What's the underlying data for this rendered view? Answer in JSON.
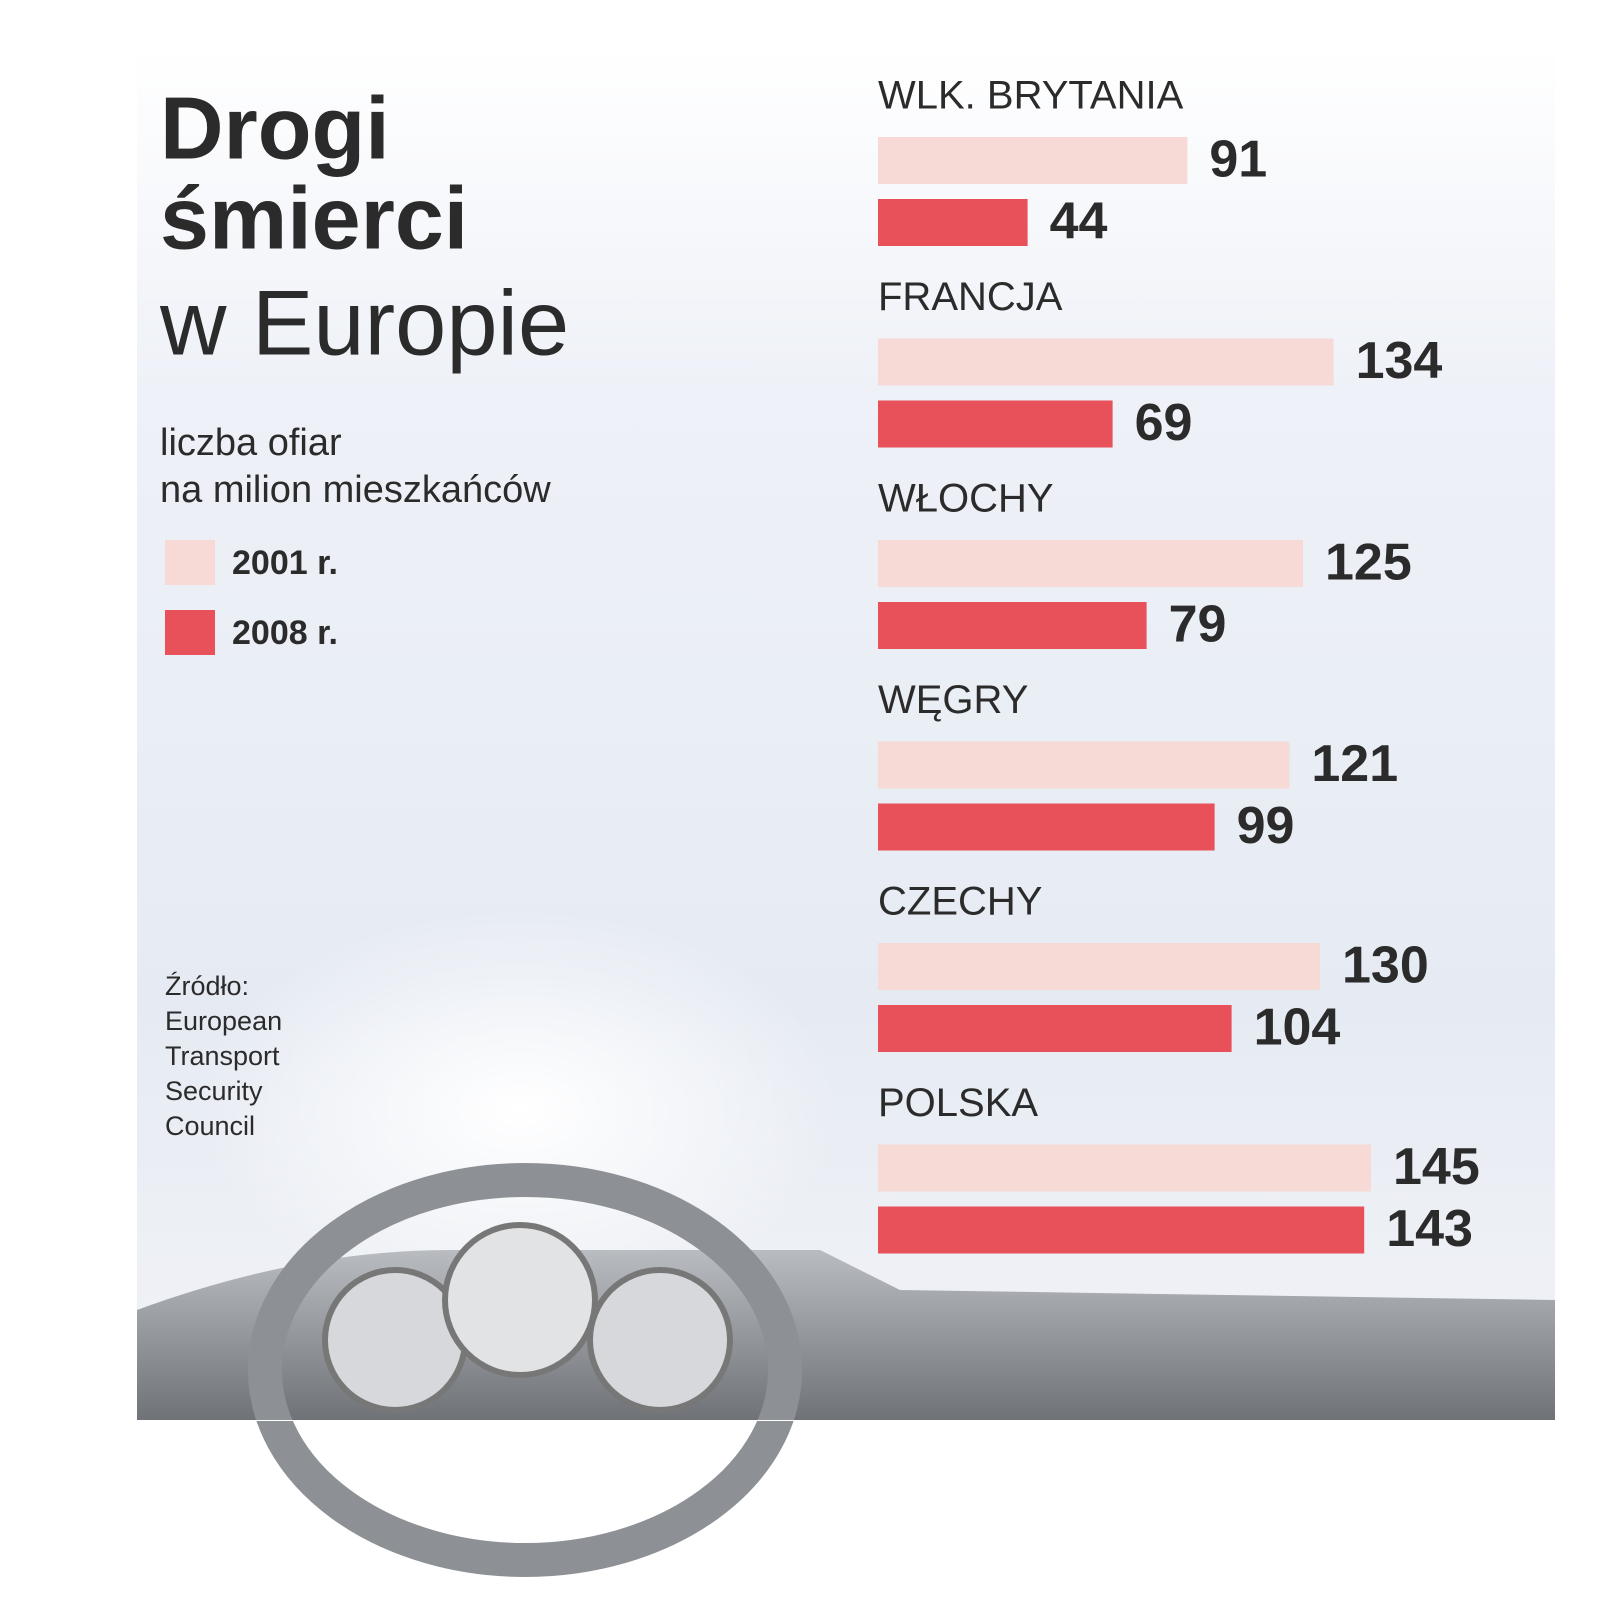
{
  "chart_data": {
    "type": "bar",
    "orientation": "horizontal",
    "title": [
      "Drogi",
      "śmierci",
      "w Europie"
    ],
    "subtitle": [
      "liczba ofiar",
      "na milion mieszkańców"
    ],
    "source": [
      "Źródło:",
      "European",
      "Transport",
      "Security",
      "Council"
    ],
    "categories": [
      "WLK. BRYTANIA",
      "FRANCJA",
      "WŁOCHY",
      "WĘGRY",
      "CZECHY",
      "POLSKA"
    ],
    "series": [
      {
        "name": "2001 r.",
        "color": "#f7d9d5",
        "values": [
          91,
          134,
          125,
          121,
          130,
          145
        ]
      },
      {
        "name": "2008 r.",
        "color": "#e8505a",
        "values": [
          44,
          69,
          79,
          99,
          104,
          143
        ]
      }
    ]
  }
}
